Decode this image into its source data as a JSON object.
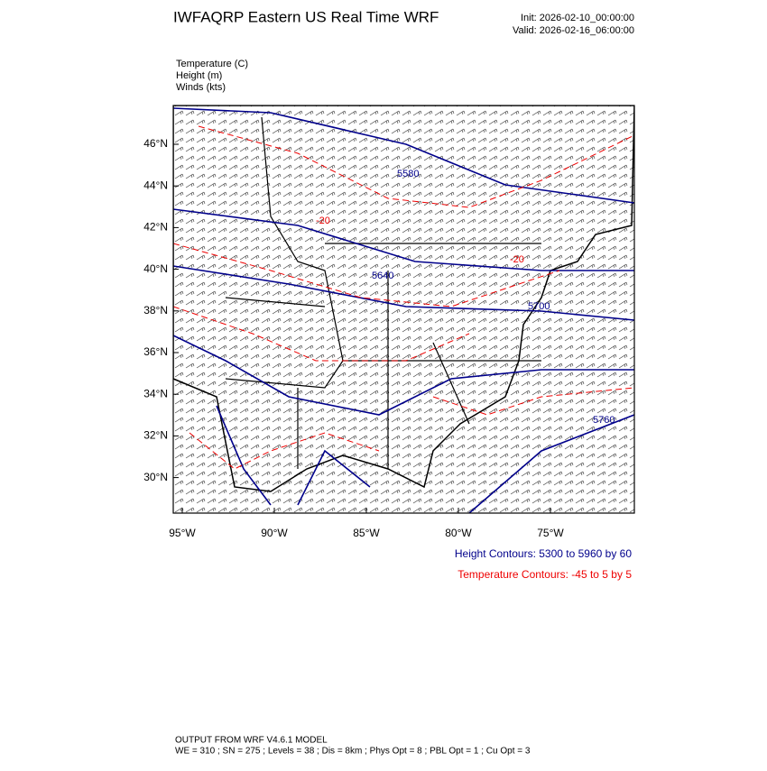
{
  "header": {
    "title": "IWFAQRP Eastern US Real Time WRF",
    "init": "Init: 2026-02-10_00:00:00",
    "valid": "Valid: 2026-02-16_06:00:00"
  },
  "fields": [
    "Temperature   (C)",
    "Height   (m)",
    "Winds   (kts)"
  ],
  "lat_labels": [
    "46°N",
    "44°N",
    "42°N",
    "40°N",
    "38°N",
    "36°N",
    "34°N",
    "32°N",
    "30°N"
  ],
  "lon_labels": [
    "95°W",
    "90°W",
    "85°W",
    "80°W",
    "75°W"
  ],
  "contour_labels": {
    "height": [
      "5580",
      "5640",
      "5700",
      "5760"
    ],
    "temperature": [
      "-20",
      "-20"
    ]
  },
  "legend": {
    "height": "Height Contours: 5300 to 5960 by 60",
    "temperature": "Temperature Contours: -45 to 5 by 5"
  },
  "footer": {
    "model": "OUTPUT FROM WRF V4.6.1 MODEL",
    "settings": "WE = 310 ; SN = 275 ; Levels = 38 ; Dis = 8km ; Phys Opt = 8 ; PBL Opt = 1 ; Cu Opt = 3"
  }
}
